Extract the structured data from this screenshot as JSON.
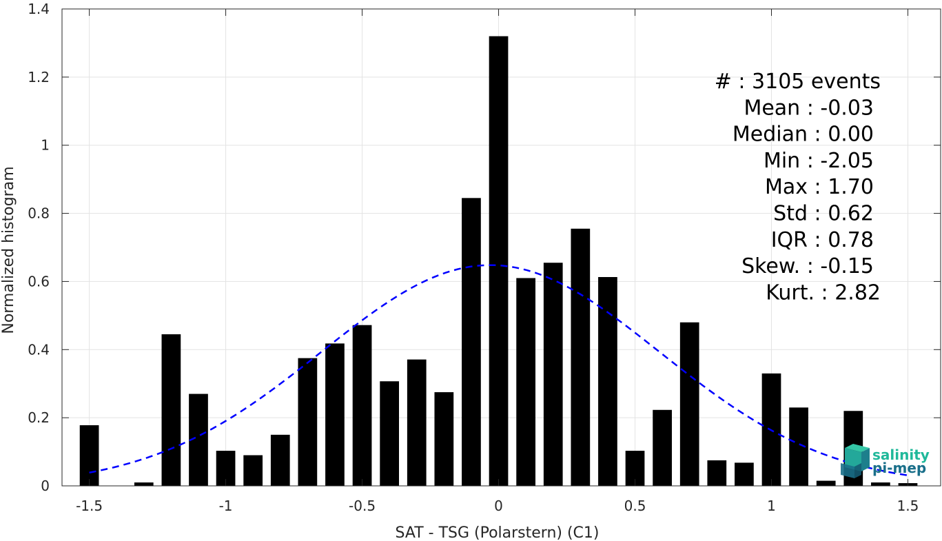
{
  "chart_data": {
    "type": "bar",
    "title": "",
    "xlabel": "SAT - TSG (Polarstern) (C1)",
    "ylabel": "Normalized histogram",
    "xlim": [
      -1.6,
      1.62
    ],
    "ylim": [
      0,
      1.4
    ],
    "grid": true,
    "bar_width": 0.07,
    "x_ticks": [
      -1.5,
      -1,
      -0.5,
      0,
      0.5,
      1,
      1.5
    ],
    "x_tick_labels": [
      "-1.5",
      "-1",
      "-0.5",
      "0",
      "0.5",
      "1",
      "1.5"
    ],
    "y_ticks": [
      0,
      0.2,
      0.4,
      0.6,
      0.8,
      1,
      1.2,
      1.4
    ],
    "y_tick_labels": [
      "0",
      "0.2",
      "0.4",
      "0.6",
      "0.8",
      "1",
      "1.2",
      "1.4"
    ],
    "x": [
      -1.5,
      -1.4,
      -1.3,
      -1.2,
      -1.1,
      -1.0,
      -0.9,
      -0.8,
      -0.7,
      -0.6,
      -0.5,
      -0.4,
      -0.3,
      -0.2,
      -0.1,
      0.0,
      0.1,
      0.2,
      0.3,
      0.4,
      0.5,
      0.6,
      0.7,
      0.8,
      0.9,
      1.0,
      1.1,
      1.2,
      1.3,
      1.4,
      1.5
    ],
    "values": [
      0.178,
      0.0,
      0.01,
      0.445,
      0.27,
      0.103,
      0.09,
      0.15,
      0.375,
      0.418,
      0.472,
      0.307,
      0.371,
      0.275,
      0.845,
      1.32,
      0.61,
      0.655,
      0.755,
      0.613,
      0.103,
      0.223,
      0.48,
      0.075,
      0.068,
      0.33,
      0.23,
      0.015,
      0.22,
      0.01,
      0.008
    ],
    "bar_color": "#000000",
    "fit_curve": {
      "type": "gaussian",
      "mean": -0.03,
      "std": 0.62,
      "peak": 0.648,
      "x_range": [
        -1.5,
        1.5
      ],
      "color": "#0000ff",
      "style": "dashed"
    },
    "stats": [
      {
        "label": "#  : 3105 events"
      },
      {
        "label": "Mean : -0.03"
      },
      {
        "label": "Median : 0.00"
      },
      {
        "label": "Min : -2.05"
      },
      {
        "label": "Max : 1.70"
      },
      {
        "label": "Std : 0.62"
      },
      {
        "label": "IQR : 0.78"
      },
      {
        "label": "Skew. : -0.15"
      },
      {
        "label": "Kurt. : 2.82"
      }
    ],
    "logo": {
      "line1": "salinity",
      "line2": "pi-mep",
      "color1": "#1fb89a",
      "color2": "#1a6f8a"
    }
  }
}
